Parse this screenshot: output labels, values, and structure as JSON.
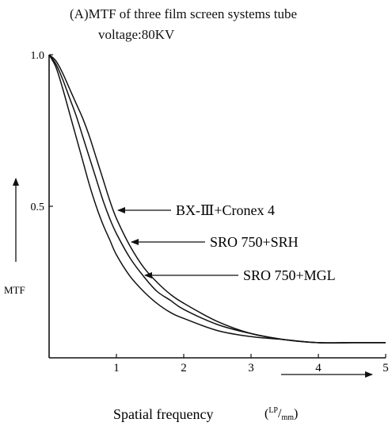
{
  "chart_data": {
    "type": "line",
    "title_line1": "(A)MTF of three film screen systems tube",
    "title_line2": "voltage:80KV",
    "xlabel": "Spatial frequency",
    "xunit": "(LP/mm)",
    "xunit_num": "LP",
    "xunit_den": "mm",
    "ylabel": "MTF",
    "xlim": [
      0,
      5
    ],
    "ylim": [
      0,
      1.0
    ],
    "xticks": [
      "1",
      "2",
      "3",
      "4",
      "5"
    ],
    "yticks": [
      "0.5",
      "1.0"
    ],
    "series": [
      {
        "name": "BX-Ⅲ+Cronex 4",
        "x": [
          0,
          0.1,
          0.2,
          0.3,
          0.4,
          0.5,
          0.6,
          0.7,
          0.8,
          0.9,
          1.0,
          1.2,
          1.4,
          1.6,
          1.8,
          2.0,
          2.5,
          3.0,
          3.5,
          4.0,
          4.5,
          5.0
        ],
        "y": [
          1.0,
          0.98,
          0.94,
          0.89,
          0.84,
          0.79,
          0.73,
          0.66,
          0.59,
          0.52,
          0.46,
          0.37,
          0.3,
          0.25,
          0.21,
          0.18,
          0.12,
          0.08,
          0.06,
          0.05,
          0.05,
          0.05
        ]
      },
      {
        "name": "SRO 750+SRH",
        "x": [
          0,
          0.1,
          0.2,
          0.3,
          0.4,
          0.5,
          0.6,
          0.7,
          0.8,
          0.9,
          1.0,
          1.2,
          1.4,
          1.6,
          1.8,
          2.0,
          2.5,
          3.0,
          3.5,
          4.0,
          4.5,
          5.0
        ],
        "y": [
          1.0,
          0.97,
          0.92,
          0.86,
          0.8,
          0.73,
          0.66,
          0.59,
          0.52,
          0.46,
          0.41,
          0.33,
          0.27,
          0.22,
          0.19,
          0.16,
          0.11,
          0.08,
          0.06,
          0.05,
          0.05,
          0.05
        ]
      },
      {
        "name": "SRO 750+MGL",
        "x": [
          0,
          0.1,
          0.2,
          0.3,
          0.4,
          0.5,
          0.6,
          0.7,
          0.8,
          0.9,
          1.0,
          1.2,
          1.4,
          1.6,
          1.8,
          2.0,
          2.5,
          3.0,
          3.5,
          4.0,
          4.5,
          5.0
        ],
        "y": [
          1.0,
          0.96,
          0.89,
          0.81,
          0.73,
          0.65,
          0.57,
          0.5,
          0.44,
          0.39,
          0.34,
          0.27,
          0.22,
          0.18,
          0.15,
          0.13,
          0.09,
          0.07,
          0.06,
          0.05,
          0.05,
          0.05
        ]
      }
    ],
    "grid": false,
    "legend": "inline-arrows"
  }
}
